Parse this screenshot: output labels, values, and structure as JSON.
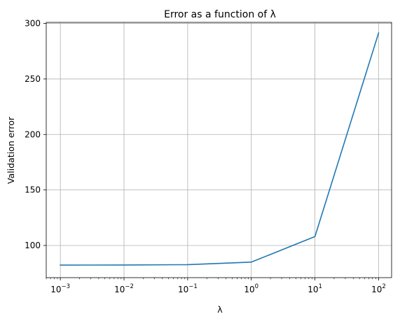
{
  "chart_data": {
    "type": "line",
    "title": "Error as a function of λ",
    "xlabel": "λ",
    "ylabel": "Validation error",
    "xscale": "log",
    "x": [
      0.001,
      0.01,
      0.1,
      1,
      10,
      100
    ],
    "series": [
      {
        "values": [
          82.3,
          82.4,
          82.7,
          85.0,
          108.0,
          291.5
        ],
        "color": "#1f77b4"
      }
    ],
    "xlim": [
      0.0006,
      160
    ],
    "ylim": [
      71,
      301
    ],
    "x_ticks": [
      {
        "value": 0.001,
        "base": "10",
        "exp": "−3"
      },
      {
        "value": 0.01,
        "base": "10",
        "exp": "−2"
      },
      {
        "value": 0.1,
        "base": "10",
        "exp": "−1"
      },
      {
        "value": 1,
        "base": "10",
        "exp": "0"
      },
      {
        "value": 10,
        "base": "10",
        "exp": "1"
      },
      {
        "value": 100,
        "base": "10",
        "exp": "2"
      }
    ],
    "y_ticks": [
      100,
      150,
      200,
      250,
      300
    ],
    "y_tick_labels": [
      "100",
      "150",
      "200",
      "250",
      "300"
    ],
    "grid": true,
    "grid_color": "#b0b0b0"
  }
}
